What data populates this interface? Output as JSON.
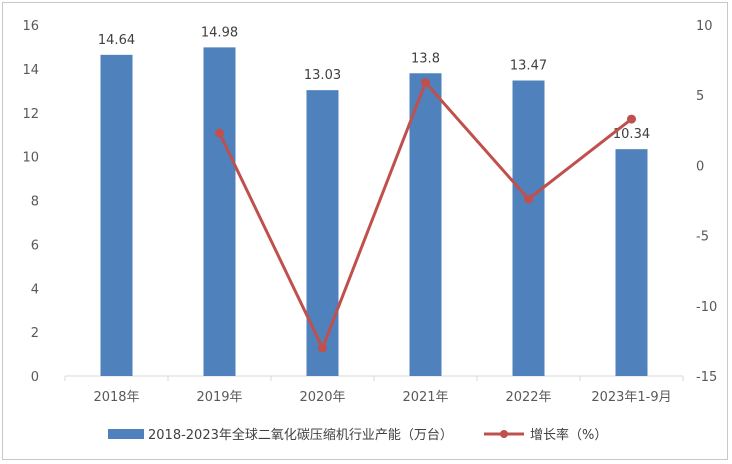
{
  "chart_data": {
    "type": "bar+line",
    "categories": [
      "2018年",
      "2019年",
      "2020年",
      "2021年",
      "2022年",
      "2023年1-9月"
    ],
    "series": [
      {
        "name": "2018-2023年全球二氧化碳压缩机行业产能（万台）",
        "kind": "bar",
        "axis": "left",
        "values": [
          14.64,
          14.98,
          13.03,
          13.8,
          13.47,
          10.34
        ],
        "labels": [
          "14.64",
          "14.98",
          "13.03",
          "13.8",
          "13.47",
          "10.34"
        ],
        "color": "#4f81bd"
      },
      {
        "name": "增长率（%）",
        "kind": "line",
        "axis": "right",
        "values": [
          null,
          2.3,
          -13.0,
          5.9,
          -2.4,
          3.3
        ],
        "color": "#c0504d"
      }
    ],
    "y_left": {
      "min": 0,
      "max": 16,
      "step": 2,
      "ticks": [
        "0",
        "2",
        "4",
        "6",
        "8",
        "10",
        "12",
        "14",
        "16"
      ]
    },
    "y_right": {
      "min": -15,
      "max": 10,
      "step": 5,
      "ticks": [
        "-15",
        "-10",
        "-5",
        "0",
        "5",
        "10"
      ]
    },
    "grid": false,
    "legend_position": "bottom"
  }
}
